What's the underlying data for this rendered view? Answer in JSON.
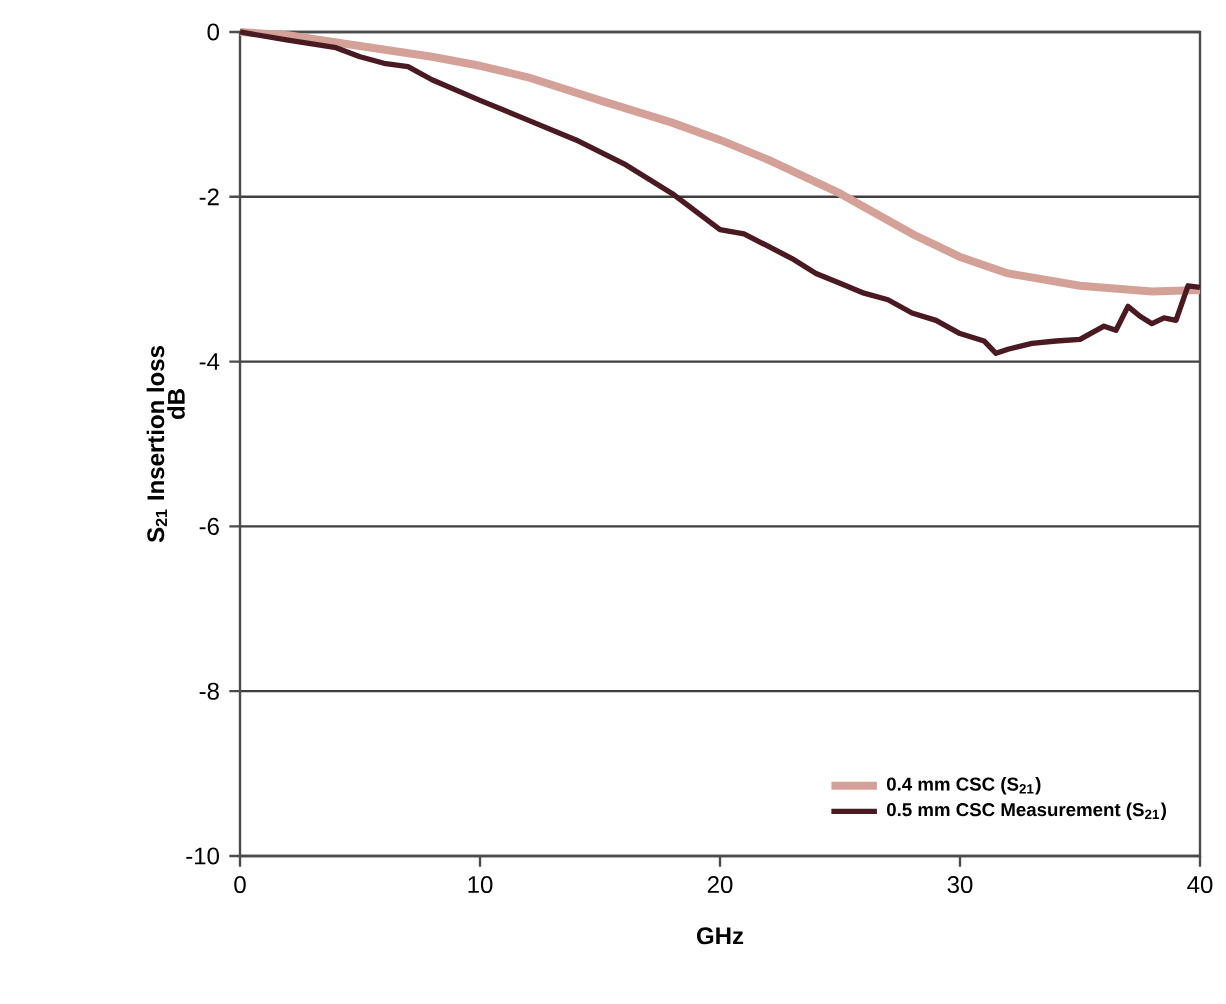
{
  "chart_data": {
    "type": "line",
    "xlabel": "GHz",
    "ylabel": "S$_{21}$ Insertion loss",
    "annotations": [
      "dB"
    ],
    "xlim": [
      0,
      40
    ],
    "ylim": [
      -10,
      0
    ],
    "xticks": [
      0,
      10,
      20,
      30,
      40
    ],
    "yticks": [
      -10,
      -8,
      -6,
      -4,
      -2,
      0
    ],
    "grid": "y",
    "legend": "bottom right",
    "marker": "none",
    "line_style": "solid",
    "series": [
      {
        "name": "0.4 mm CSC (S$_{21}$)",
        "color": "#d4a198",
        "x": [
          0,
          2,
          5,
          8,
          10,
          12,
          15,
          18,
          20,
          22,
          25,
          28,
          30,
          32,
          35,
          38,
          40
        ],
        "values": [
          0,
          -0.04,
          -0.17,
          -0.3,
          -0.41,
          -0.55,
          -0.83,
          -1.1,
          -1.31,
          -1.55,
          -1.96,
          -2.45,
          -2.73,
          -2.93,
          -3.08,
          -3.15,
          -3.13
        ]
      },
      {
        "name": "0.5 mm CSC Measurement (S$_{21}$)",
        "color": "#4a1a22",
        "x": [
          0,
          2,
          4,
          5,
          6,
          7,
          8,
          10,
          12,
          14,
          16,
          18,
          20,
          21,
          22,
          23,
          24,
          25,
          26,
          27,
          28,
          29,
          30,
          31,
          31.5,
          32,
          33,
          34,
          35,
          36,
          36.5,
          37,
          37.5,
          38,
          38.5,
          39,
          39.5,
          40
        ],
        "values": [
          0,
          -0.1,
          -0.19,
          -0.3,
          -0.38,
          -0.42,
          -0.58,
          -0.83,
          -1.07,
          -1.31,
          -1.6,
          -1.96,
          -2.4,
          -2.45,
          -2.6,
          -2.75,
          -2.93,
          -3.05,
          -3.17,
          -3.25,
          -3.41,
          -3.5,
          -3.66,
          -3.75,
          -3.9,
          -3.85,
          -3.78,
          -3.75,
          -3.73,
          -3.57,
          -3.62,
          -3.33,
          -3.45,
          -3.54,
          -3.47,
          -3.5,
          -3.08,
          -3.1
        ]
      }
    ]
  }
}
